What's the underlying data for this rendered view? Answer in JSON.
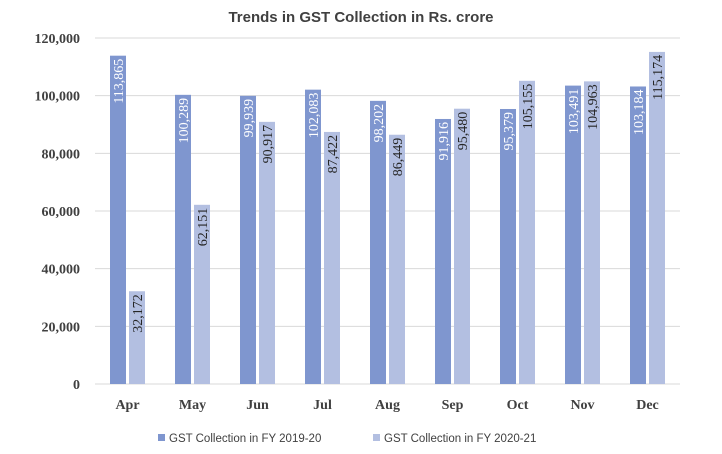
{
  "colors": {
    "series_2019": "#7f96cf",
    "series_2020": "#b3bfe1",
    "label_on_dark": "#ffffff",
    "label_on_light": "#262626"
  },
  "chart_data": {
    "type": "bar",
    "title": "Trends in GST Collection in Rs. crore",
    "xlabel": "",
    "ylabel": "",
    "categories": [
      "Apr",
      "May",
      "Jun",
      "Jul",
      "Aug",
      "Sep",
      "Oct",
      "Nov",
      "Dec"
    ],
    "series": [
      {
        "name": "GST Collection in FY 2019-20",
        "values": [
          113865,
          100289,
          99939,
          102083,
          98202,
          91916,
          95379,
          103491,
          103184
        ],
        "labels": [
          "113,865",
          "100,289",
          "99,939",
          "102,083",
          "98,202",
          "91,916",
          "95,379",
          "103,491",
          "103,184"
        ]
      },
      {
        "name": "GST Collection in FY 2020-21",
        "values": [
          32172,
          62151,
          90917,
          87422,
          86449,
          95480,
          105155,
          104963,
          115174
        ],
        "labels": [
          "32,172",
          "62,151",
          "90,917",
          "87,422",
          "86,449",
          "95,480",
          "105,155",
          "104,963",
          "115,174"
        ]
      }
    ],
    "ylim": [
      0,
      120000
    ],
    "yticks": [
      0,
      20000,
      40000,
      60000,
      80000,
      100000,
      120000
    ],
    "ytick_labels": [
      "0",
      "20,000",
      "40,000",
      "60,000",
      "80,000",
      "100,000",
      "120,000"
    ],
    "grid": true,
    "legend_position": "bottom"
  }
}
